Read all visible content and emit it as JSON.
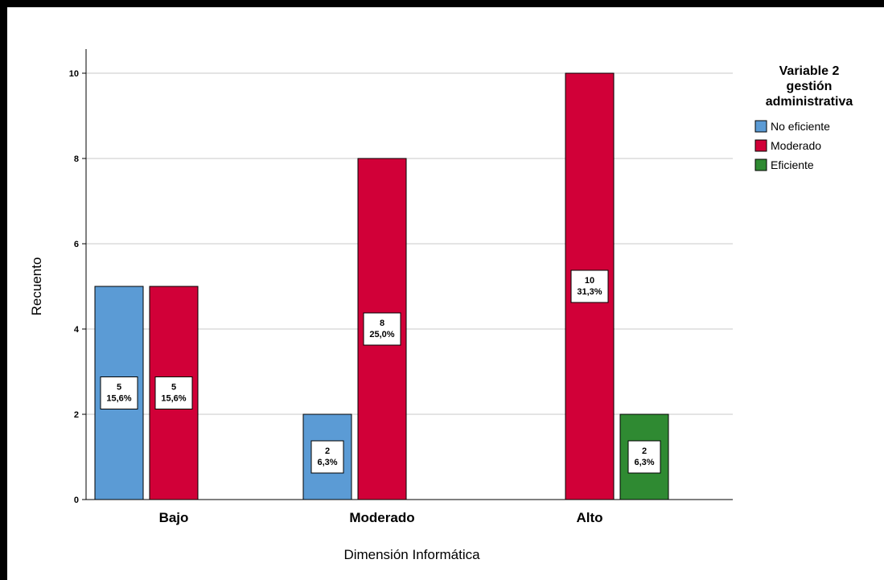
{
  "chart_data": {
    "type": "bar",
    "title": "",
    "xlabel": "Dimensión Informática",
    "ylabel": "Recuento",
    "categories": [
      "Bajo",
      "Moderado",
      "Alto"
    ],
    "ylim": [
      0,
      10
    ],
    "yticks": [
      "0",
      "2",
      "4",
      "6",
      "8",
      "10"
    ],
    "grid": true,
    "legend": {
      "title": [
        "Variable 2",
        "gestión",
        "administrativa"
      ],
      "position": "top-right"
    },
    "series": [
      {
        "name": "No eficiente",
        "color": "#5b9bd5",
        "values": [
          5,
          2,
          0
        ],
        "labels": [
          [
            "5",
            "15,6%"
          ],
          [
            "2",
            "6,3%"
          ],
          null
        ]
      },
      {
        "name": "Moderado",
        "color": "#d10038",
        "values": [
          5,
          8,
          10
        ],
        "labels": [
          [
            "5",
            "15,6%"
          ],
          [
            "8",
            "25,0%"
          ],
          [
            "10",
            "31,3%"
          ]
        ]
      },
      {
        "name": "Eficiente",
        "color": "#2f8a32",
        "values": [
          0,
          0,
          2
        ],
        "labels": [
          null,
          null,
          [
            "2",
            "6,3%"
          ]
        ]
      }
    ]
  }
}
